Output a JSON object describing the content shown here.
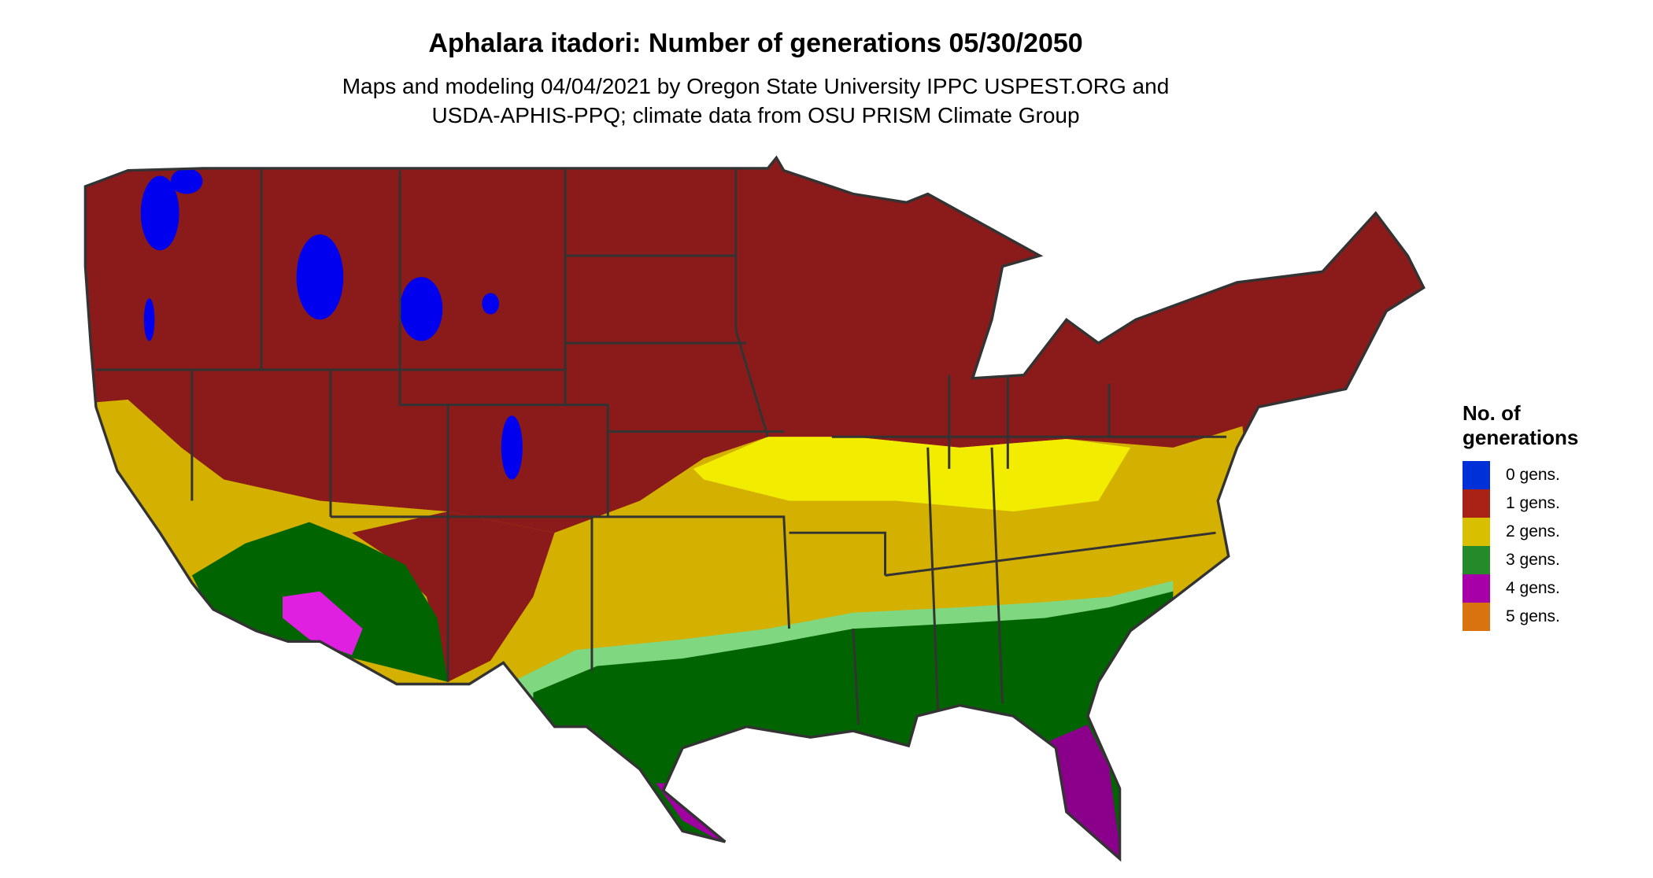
{
  "title": "Aphalara itadori: Number of generations 05/30/2050",
  "subtitle_lines": [
    "Maps and modeling 04/04/2021 by Oregon State University IPPC USPEST.ORG and",
    "USDA-APHIS-PPQ; climate data from OSU PRISM Climate Group"
  ],
  "legend": {
    "title_lines": [
      "No. of",
      "generations"
    ],
    "items": [
      {
        "label": "0 gens.",
        "color": "#0030d8"
      },
      {
        "label": "1 gens.",
        "color": "#a82216"
      },
      {
        "label": "2 gens.",
        "color": "#d8c000"
      },
      {
        "label": "3 gens.",
        "color": "#258a28"
      },
      {
        "label": "4 gens.",
        "color": "#a800a8"
      },
      {
        "label": "5 gens.",
        "color": "#d87410"
      }
    ]
  },
  "map_colors": {
    "one_gen": "#8b1a1a",
    "two_gen": "#d4b000",
    "two_gen_light": "#f2ec00",
    "three_gen": "#006400",
    "three_gen_light": "#7fd87f",
    "four_gen": "#8b008b",
    "four_gen_light": "#e020e0",
    "zero_gen": "#0000ee",
    "border": "#333333"
  }
}
